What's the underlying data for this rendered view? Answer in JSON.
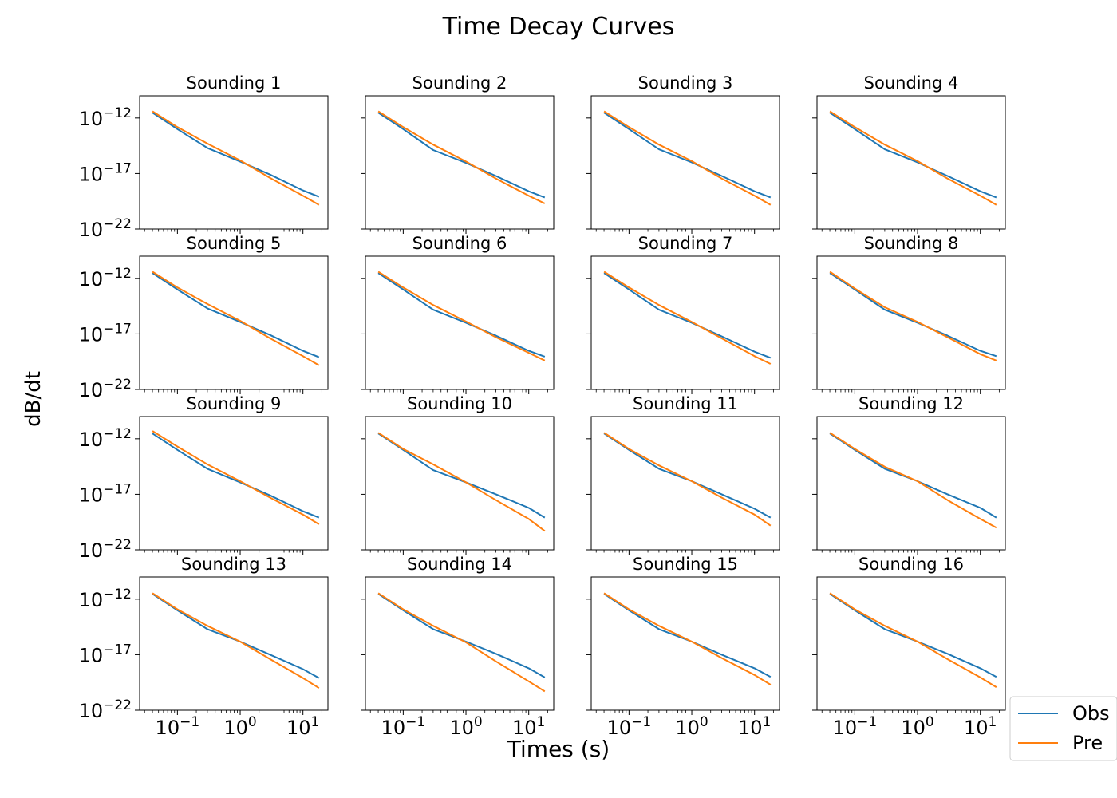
{
  "chart_data": {
    "type": "line",
    "title": "Time Decay Curves",
    "xlabel": "Times (s)",
    "ylabel": "dB/dt",
    "x_scale": "log",
    "y_scale": "log",
    "xlim": [
      0.025,
      25
    ],
    "ylim": [
      1e-22,
      1e-10
    ],
    "x_ticks": [
      {
        "value": 0.1,
        "base": "10",
        "exp": "−1"
      },
      {
        "value": 1,
        "base": "10",
        "exp": "0"
      },
      {
        "value": 10,
        "base": "10",
        "exp": "1"
      }
    ],
    "y_ticks": [
      {
        "value": 1e-12,
        "base": "10",
        "exp": "−12"
      },
      {
        "value": 1e-17,
        "base": "10",
        "exp": "−17"
      },
      {
        "value": 1e-22,
        "base": "10",
        "exp": "−22"
      }
    ],
    "grid": false,
    "layout": {
      "rows": 4,
      "cols": 4,
      "shared_axes": true
    },
    "legend": {
      "placement": "bottom-right",
      "entries": [
        {
          "name": "Obs",
          "color": "#1f77b4"
        },
        {
          "name": "Pre",
          "color": "#ff7f0e"
        }
      ]
    },
    "x": [
      0.04,
      0.1,
      0.3,
      1.0,
      3.0,
      10.0,
      18.0
    ],
    "subplots": [
      {
        "title": "Sounding 1",
        "obs": [
          3e-12,
          1e-13,
          2e-15,
          1.2e-16,
          8e-18,
          3e-19,
          8e-20
        ],
        "pre": [
          4e-12,
          1.5e-13,
          5e-15,
          1.5e-16,
          4e-18,
          1e-19,
          1.5e-20
        ]
      },
      {
        "title": "Sounding 2",
        "obs": [
          3e-12,
          1e-13,
          1.3e-15,
          9e-17,
          6e-18,
          2.5e-19,
          7e-20
        ],
        "pre": [
          4e-12,
          1.5e-13,
          4e-15,
          1.2e-16,
          3.5e-18,
          1e-19,
          2e-20
        ]
      },
      {
        "title": "Sounding 3",
        "obs": [
          3e-12,
          1e-13,
          1.5e-15,
          1e-16,
          6e-18,
          2.5e-19,
          7e-20
        ],
        "pre": [
          4e-12,
          1.5e-13,
          4e-15,
          1.3e-16,
          3.5e-18,
          1e-19,
          1.5e-20
        ]
      },
      {
        "title": "Sounding 4",
        "obs": [
          3e-12,
          1e-13,
          1.5e-15,
          1e-16,
          6e-18,
          2.5e-19,
          7e-20
        ],
        "pre": [
          4e-12,
          1.5e-13,
          4e-15,
          1.3e-16,
          3.5e-18,
          1e-19,
          1.5e-20
        ]
      },
      {
        "title": "Sounding 5",
        "obs": [
          3e-12,
          1e-13,
          2e-15,
          1.2e-16,
          8e-18,
          3e-19,
          8e-20
        ],
        "pre": [
          4e-12,
          1.5e-13,
          5e-15,
          1.5e-16,
          4e-18,
          1e-19,
          1.5e-20
        ]
      },
      {
        "title": "Sounding 6",
        "obs": [
          3e-12,
          1e-13,
          1.5e-15,
          1e-16,
          7e-18,
          3e-19,
          9e-20
        ],
        "pre": [
          4e-12,
          1.5e-13,
          4e-15,
          1.3e-16,
          5e-18,
          2e-19,
          4e-20
        ]
      },
      {
        "title": "Sounding 7",
        "obs": [
          3e-12,
          1e-13,
          1.5e-15,
          1e-16,
          6e-18,
          2.5e-19,
          7e-20
        ],
        "pre": [
          4e-12,
          1.5e-13,
          4e-15,
          1.2e-16,
          4e-18,
          1e-19,
          2e-20
        ]
      },
      {
        "title": "Sounding 8",
        "obs": [
          3e-12,
          1e-13,
          1.5e-15,
          1e-16,
          7e-18,
          3e-19,
          1e-19
        ],
        "pre": [
          4e-12,
          1.2e-13,
          2.5e-15,
          1.2e-16,
          5e-18,
          1.5e-19,
          4e-20
        ]
      },
      {
        "title": "Sounding 9",
        "obs": [
          3e-12,
          1e-13,
          2e-15,
          1.2e-16,
          8e-18,
          3e-19,
          8e-20
        ],
        "pre": [
          5e-12,
          2e-13,
          5e-15,
          1.5e-16,
          5e-18,
          1.5e-19,
          2e-20
        ]
      },
      {
        "title": "Sounding 10",
        "obs": [
          3e-12,
          1e-13,
          1.5e-15,
          1.2e-16,
          1e-17,
          6e-19,
          8e-20
        ],
        "pre": [
          3.5e-12,
          1.2e-13,
          5e-15,
          1.2e-16,
          3e-18,
          6e-20,
          5e-21
        ]
      },
      {
        "title": "Sounding 11",
        "obs": [
          3e-12,
          1e-13,
          2e-15,
          1.5e-16,
          1e-17,
          5e-19,
          8e-20
        ],
        "pre": [
          3.5e-12,
          1.2e-13,
          4e-15,
          1.5e-16,
          5e-18,
          1.5e-19,
          1.5e-20
        ]
      },
      {
        "title": "Sounding 12",
        "obs": [
          3e-12,
          1e-13,
          2e-15,
          1.5e-16,
          1e-17,
          6e-19,
          8e-20
        ],
        "pre": [
          3.5e-12,
          1.2e-13,
          3e-15,
          1.5e-16,
          3e-18,
          6e-20,
          1e-20
        ]
      },
      {
        "title": "Sounding 13",
        "obs": [
          3e-12,
          1e-13,
          2e-15,
          1.5e-16,
          1e-17,
          5e-19,
          8e-20
        ],
        "pre": [
          3.5e-12,
          1.2e-13,
          4e-15,
          1.5e-16,
          4e-18,
          8e-20,
          1e-20
        ]
      },
      {
        "title": "Sounding 14",
        "obs": [
          3e-12,
          1e-13,
          2e-15,
          1.5e-16,
          1.2e-17,
          6e-19,
          9e-20
        ],
        "pre": [
          3.5e-12,
          1.2e-13,
          4e-15,
          1.3e-16,
          2.5e-18,
          4e-20,
          5e-21
        ]
      },
      {
        "title": "Sounding 15",
        "obs": [
          3e-12,
          1e-13,
          2e-15,
          1.5e-16,
          1e-17,
          6e-19,
          1e-19
        ],
        "pre": [
          3.5e-12,
          1.2e-13,
          4e-15,
          1.5e-16,
          5e-18,
          1.5e-19,
          2e-20
        ]
      },
      {
        "title": "Sounding 16",
        "obs": [
          3e-12,
          1e-13,
          2e-15,
          1.5e-16,
          1.2e-17,
          6e-19,
          1e-19
        ],
        "pre": [
          3.5e-12,
          1.2e-13,
          4e-15,
          1.5e-16,
          4e-18,
          9e-20,
          1.2e-20
        ]
      }
    ]
  }
}
